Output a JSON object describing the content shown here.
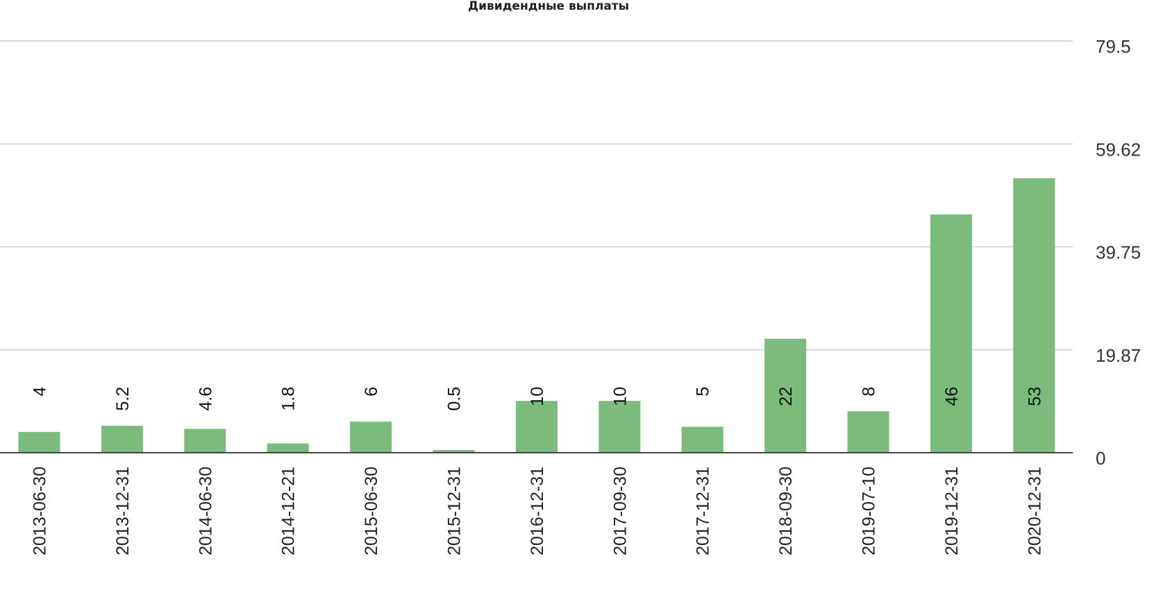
{
  "chart_data": {
    "type": "bar",
    "title": "Дивидендные выплаты",
    "categories": [
      "2013-06-30",
      "2013-12-31",
      "2014-06-30",
      "2014-12-21",
      "2015-06-30",
      "2015-12-31",
      "2016-12-31",
      "2017-09-30",
      "2017-12-31",
      "2018-09-30",
      "2019-07-10",
      "2019-12-31",
      "2020-12-31"
    ],
    "values": [
      4,
      5.2,
      4.6,
      1.8,
      6,
      0.5,
      10,
      10,
      5,
      22,
      8,
      46,
      53
    ],
    "data_labels": [
      "4",
      "5.2",
      "4.6",
      "1.8",
      "6",
      "0.5",
      "10",
      "10",
      "5",
      "22",
      "8",
      "46",
      "53"
    ],
    "y_ticks": [
      "0",
      "19.87",
      "39.75",
      "59.62",
      "79.5"
    ],
    "ylim": [
      0,
      79.5
    ],
    "yaxis_position": "right",
    "grid": true,
    "bar_color": "#7bbb7b"
  }
}
